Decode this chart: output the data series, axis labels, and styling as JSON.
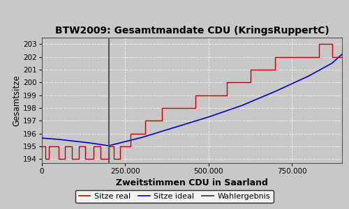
{
  "title": "BTW2009: Gesamtmandate CDU (KringsRuppertC)",
  "xlabel": "Zweitstimmen CDU in Saarland",
  "ylabel": "Gesamtsitze",
  "bg_color": "#c8c8c8",
  "plot_bg_color": "#c8c8c8",
  "fig_bg_color": "#c8c8c8",
  "xlim": [
    0,
    900000
  ],
  "ylim": [
    193.7,
    203.5
  ],
  "yticks": [
    194,
    195,
    196,
    197,
    198,
    199,
    200,
    201,
    202,
    203
  ],
  "xticks": [
    0,
    250000,
    500000,
    750000
  ],
  "xtick_labels": [
    "0",
    "250.000",
    "500.000",
    "750.000"
  ],
  "wahlergebnis_x": 200000,
  "legend_labels": [
    "Sitze real",
    "Sitze ideal",
    "Wahlergebnis"
  ],
  "line_real_color": "#cc0000",
  "line_ideal_color": "#0000cc",
  "line_wahlergebnis_color": "#555555",
  "red_x": [
    0,
    10000,
    10000,
    20000,
    20000,
    50000,
    50000,
    70000,
    70000,
    90000,
    90000,
    110000,
    110000,
    130000,
    130000,
    155000,
    155000,
    175000,
    175000,
    200000,
    200000,
    215000,
    215000,
    235000,
    235000,
    265000,
    265000,
    310000,
    310000,
    360000,
    360000,
    410000,
    410000,
    460000,
    460000,
    510000,
    510000,
    555000,
    555000,
    590000,
    590000,
    625000,
    625000,
    665000,
    665000,
    700000,
    700000,
    745000,
    745000,
    795000,
    795000,
    830000,
    830000,
    870000,
    870000,
    900000
  ],
  "red_y": [
    195,
    195,
    194,
    194,
    195,
    195,
    194,
    194,
    195,
    195,
    194,
    194,
    195,
    195,
    194,
    194,
    195,
    195,
    194,
    194,
    195,
    195,
    194,
    194,
    195,
    195,
    196,
    196,
    197,
    197,
    198,
    198,
    198,
    198,
    199,
    199,
    199,
    199,
    200,
    200,
    200,
    200,
    201,
    201,
    201,
    201,
    202,
    202,
    202,
    202,
    202,
    202,
    203,
    203,
    202,
    202
  ],
  "blue_x": [
    0,
    50000,
    100000,
    150000,
    200000,
    300000,
    400000,
    500000,
    600000,
    700000,
    800000,
    870000,
    900000
  ],
  "blue_y": [
    195.65,
    195.55,
    195.4,
    195.25,
    195.05,
    195.7,
    196.5,
    197.3,
    198.2,
    199.3,
    200.5,
    201.5,
    202.2
  ]
}
